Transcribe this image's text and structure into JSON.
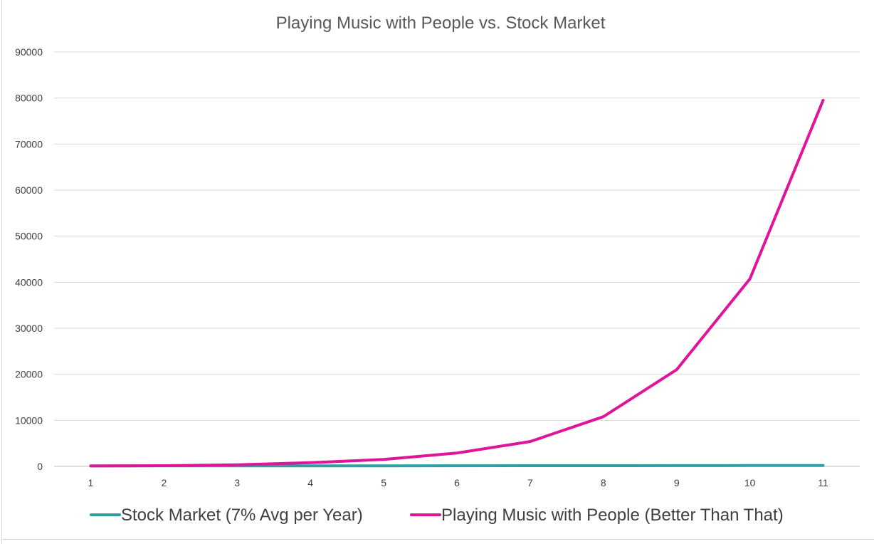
{
  "chart_data": {
    "type": "line",
    "title": "Playing Music with People  vs. Stock Market",
    "xlabel": "",
    "ylabel": "",
    "categories": [
      "1",
      "2",
      "3",
      "4",
      "5",
      "6",
      "7",
      "8",
      "9",
      "10",
      "11"
    ],
    "y_ticks": [
      "0",
      "10000",
      "20000",
      "30000",
      "40000",
      "50000",
      "60000",
      "70000",
      "80000",
      "90000"
    ],
    "ylim": [
      0,
      90000
    ],
    "grid": true,
    "legend_position": "bottom",
    "series": [
      {
        "name": "Stock Market (7% Avg per Year)",
        "color": "#2e9fa6",
        "values": [
          100,
          107,
          114,
          123,
          131,
          140,
          150,
          161,
          172,
          184,
          197
        ]
      },
      {
        "name": "Playing Music with People (Better Than That)",
        "color": "#e0149a",
        "values": [
          100,
          150,
          350,
          800,
          1500,
          2900,
          5400,
          10800,
          21000,
          40700,
          79500
        ]
      }
    ]
  }
}
